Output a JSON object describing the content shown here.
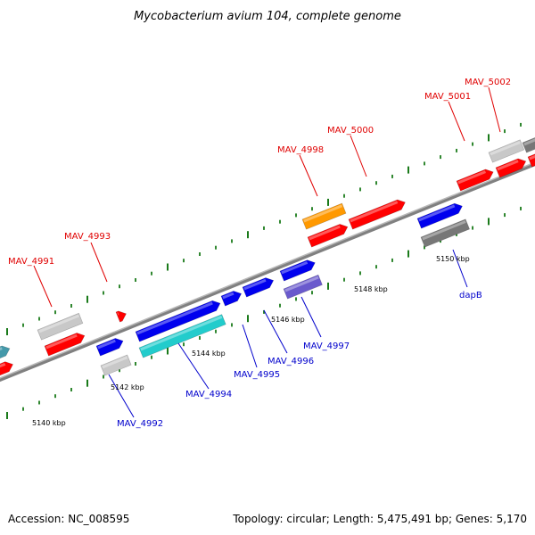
{
  "title": "Mycobacterium avium 104, complete genome",
  "footer": {
    "accession": "Accession: NC_008595",
    "summary": "Topology: circular; Length: 5,475,491 bp; Genes: 5,170"
  },
  "colors": {
    "backbone": "#808080",
    "tick": "#1a7a1a",
    "label_top": "#e00000",
    "label_bottom": "#0000cc",
    "gene_red": "#ff0000",
    "gene_gray": "#c8c8c8",
    "gene_dark_gray": "#777777",
    "gene_orange": "#ff9900",
    "gene_blue": "#0000ee",
    "gene_cyan": "#22cccc",
    "gene_slate": "#6a5acd",
    "gene_teal": "#4499aa"
  },
  "scale_labels": [
    "5140 kbp",
    "5142 kbp",
    "5144 kbp",
    "5146 kbp",
    "5148 kbp",
    "5150 kbp"
  ],
  "genes": [
    {
      "id": "g-left-red",
      "color": "gene_red"
    },
    {
      "id": "g-left-teal",
      "color": "gene_teal"
    },
    {
      "id": "g-4991-gray",
      "color": "gene_gray"
    },
    {
      "id": "g-4991-red",
      "color": "gene_red"
    },
    {
      "id": "g-4993",
      "color": "gene_red"
    },
    {
      "id": "g-4992-blue",
      "color": "gene_blue"
    },
    {
      "id": "g-4992-gray",
      "color": "gene_gray"
    },
    {
      "id": "g-4994-blue",
      "color": "gene_blue"
    },
    {
      "id": "g-4994-cyan",
      "color": "gene_cyan"
    },
    {
      "id": "g-4995",
      "color": "gene_blue"
    },
    {
      "id": "g-4996",
      "color": "gene_blue"
    },
    {
      "id": "g-4997-blue",
      "color": "gene_blue"
    },
    {
      "id": "g-4997-slate",
      "color": "gene_slate"
    },
    {
      "id": "g-4998-orange",
      "color": "gene_orange"
    },
    {
      "id": "g-4998-red",
      "color": "gene_red"
    },
    {
      "id": "g-5000",
      "color": "gene_red"
    },
    {
      "id": "g-dapB-blue",
      "color": "gene_blue"
    },
    {
      "id": "g-dapB-gray",
      "color": "gene_dark_gray"
    },
    {
      "id": "g-5001",
      "color": "gene_red"
    },
    {
      "id": "g-5002-gray",
      "color": "gene_gray"
    },
    {
      "id": "g-5002-red",
      "color": "gene_red"
    },
    {
      "id": "g-right-dark",
      "color": "gene_dark_gray"
    },
    {
      "id": "g-right-red",
      "color": "gene_red"
    }
  ],
  "labels_top": [
    "MAV_4991",
    "MAV_4993",
    "MAV_4998",
    "MAV_5000",
    "MAV_5001",
    "MAV_5002"
  ],
  "labels_bottom": [
    "MAV_4992",
    "MAV_4994",
    "MAV_4995",
    "MAV_4996",
    "MAV_4997",
    "dapB"
  ]
}
